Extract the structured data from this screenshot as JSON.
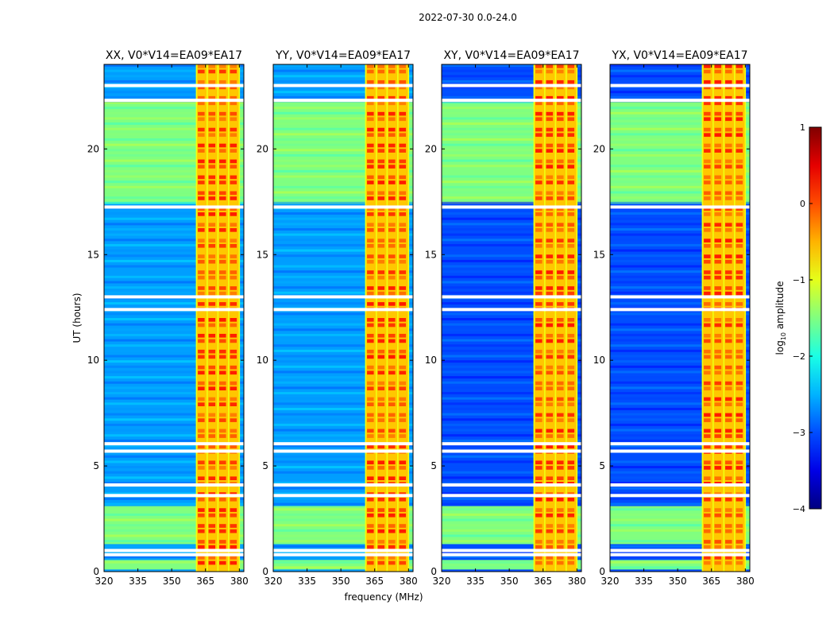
{
  "figure": {
    "suptitle": "2022-07-30 0.0-24.0"
  },
  "chart_data": {
    "type": "heatmap",
    "xlabel": "frequency (MHz)",
    "ylabel": "UT (hours)",
    "xlim": [
      320,
      382
    ],
    "ylim": [
      0,
      24
    ],
    "x_ticks": [
      320,
      335,
      350,
      365,
      380
    ],
    "y_ticks": [
      0,
      5,
      10,
      15,
      20
    ],
    "colorbar": {
      "label": "log10 amplitude",
      "range": [
        -4,
        1
      ],
      "ticks": [
        1,
        0,
        -1,
        -2,
        -3,
        -4
      ],
      "tick_labels": [
        "1",
        "0",
        "−1",
        "−2",
        "−3",
        "−4"
      ],
      "colormap": "jet"
    },
    "panels": [
      {
        "title": "XX, V0*V14=EA09*EA17",
        "baseline_level": -2.6
      },
      {
        "title": "YY, V0*V14=EA09*EA17",
        "baseline_level": -2.6
      },
      {
        "title": "XY, V0*V14=EA09*EA17",
        "baseline_level": -3.0
      },
      {
        "title": "YX, V0*V14=EA09*EA17",
        "baseline_level": -3.0
      }
    ],
    "rfi_band_mhz": [
      361,
      380
    ],
    "rfi_level": 0.0,
    "elevated_intervals_ut": [
      [
        0.1,
        0.55
      ],
      [
        1.3,
        3.1
      ],
      [
        17.4,
        22.2
      ]
    ],
    "elevated_level": -1.5,
    "flagged_rows_ut": [
      0.8,
      1.0,
      3.6,
      4.1,
      5.7,
      6.05,
      12.4,
      13.0,
      17.25,
      22.3,
      23.0
    ]
  }
}
